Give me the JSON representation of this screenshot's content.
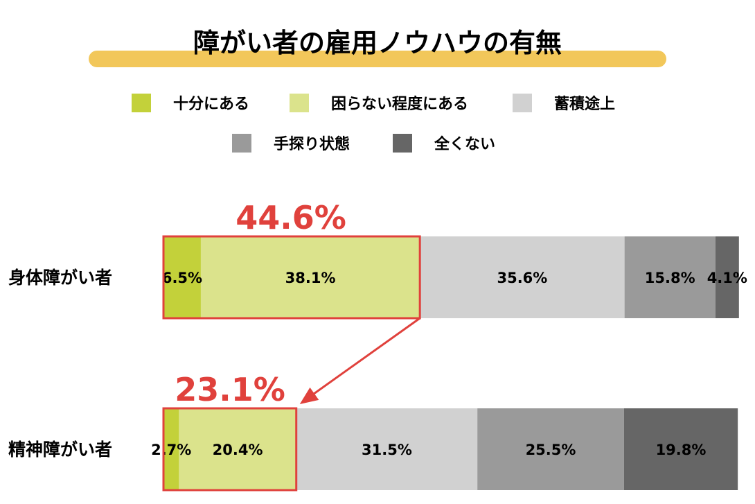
{
  "chart_data": {
    "type": "bar",
    "orientation": "horizontal",
    "stacked": true,
    "title": "障がい者の雇用ノウハウの有無",
    "categories": [
      "身体障がい者",
      "精神障がい者"
    ],
    "series": [
      {
        "name": "十分にある",
        "color": "#c3d13a",
        "values": [
          6.5,
          2.7
        ],
        "labels": [
          "6.5%",
          "2.7%"
        ]
      },
      {
        "name": "困らない程度にある",
        "color": "#dbe38c",
        "values": [
          38.1,
          20.4
        ],
        "labels": [
          "38.1%",
          "20.4%"
        ]
      },
      {
        "name": "蓄積途上",
        "color": "#d1d1d1",
        "values": [
          35.6,
          31.5
        ],
        "labels": [
          "35.6%",
          "31.5%"
        ]
      },
      {
        "name": "手探り状態",
        "color": "#9a9a9a",
        "values": [
          15.8,
          25.5
        ],
        "labels": [
          "15.8%",
          "25.5%"
        ]
      },
      {
        "name": "全くない",
        "color": "#666666",
        "values": [
          4.1,
          19.8
        ],
        "labels": [
          "4.1%",
          "19.8%"
        ]
      }
    ],
    "highlights": [
      "44.6%",
      "23.1%"
    ],
    "legend_position": "top",
    "xlim": [
      0,
      100
    ],
    "grid": false
  },
  "colors": {
    "title_bar": "#f2c75a",
    "highlight": "#e0413c"
  }
}
